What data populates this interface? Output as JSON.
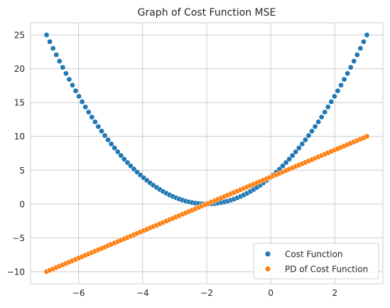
{
  "chart_data": {
    "type": "scatter",
    "title": "Graph of Cost Function MSE",
    "xlabel": "",
    "ylabel": "",
    "xlim": [
      -7.5,
      3.5
    ],
    "ylim": [
      -11.8,
      26.8
    ],
    "xticks": [
      -6,
      -4,
      -2,
      0,
      2
    ],
    "xtick_labels": [
      "−6",
      "−4",
      "−2",
      "0",
      "2"
    ],
    "yticks": [
      -10,
      -5,
      0,
      5,
      10,
      15,
      20,
      25
    ],
    "ytick_labels": [
      "−10",
      "−5",
      "0",
      "5",
      "10",
      "15",
      "20",
      "25"
    ],
    "grid": true,
    "legend_position": "bottom-right",
    "x_range": [
      -7,
      3
    ],
    "n_points": 100,
    "series": [
      {
        "name": "Cost Function",
        "color": "#1f77b4",
        "formula": "y = (x + 2)^2",
        "x_start": -7,
        "x_end": 3,
        "y_start": 25,
        "y_min": 0,
        "y_end": 25
      },
      {
        "name": "PD of Cost Function",
        "color": "#ff7f0e",
        "formula": "y = 2 * (x + 2)",
        "x_start": -7,
        "x_end": 3,
        "y_start": -10,
        "y_end": 10
      }
    ]
  }
}
